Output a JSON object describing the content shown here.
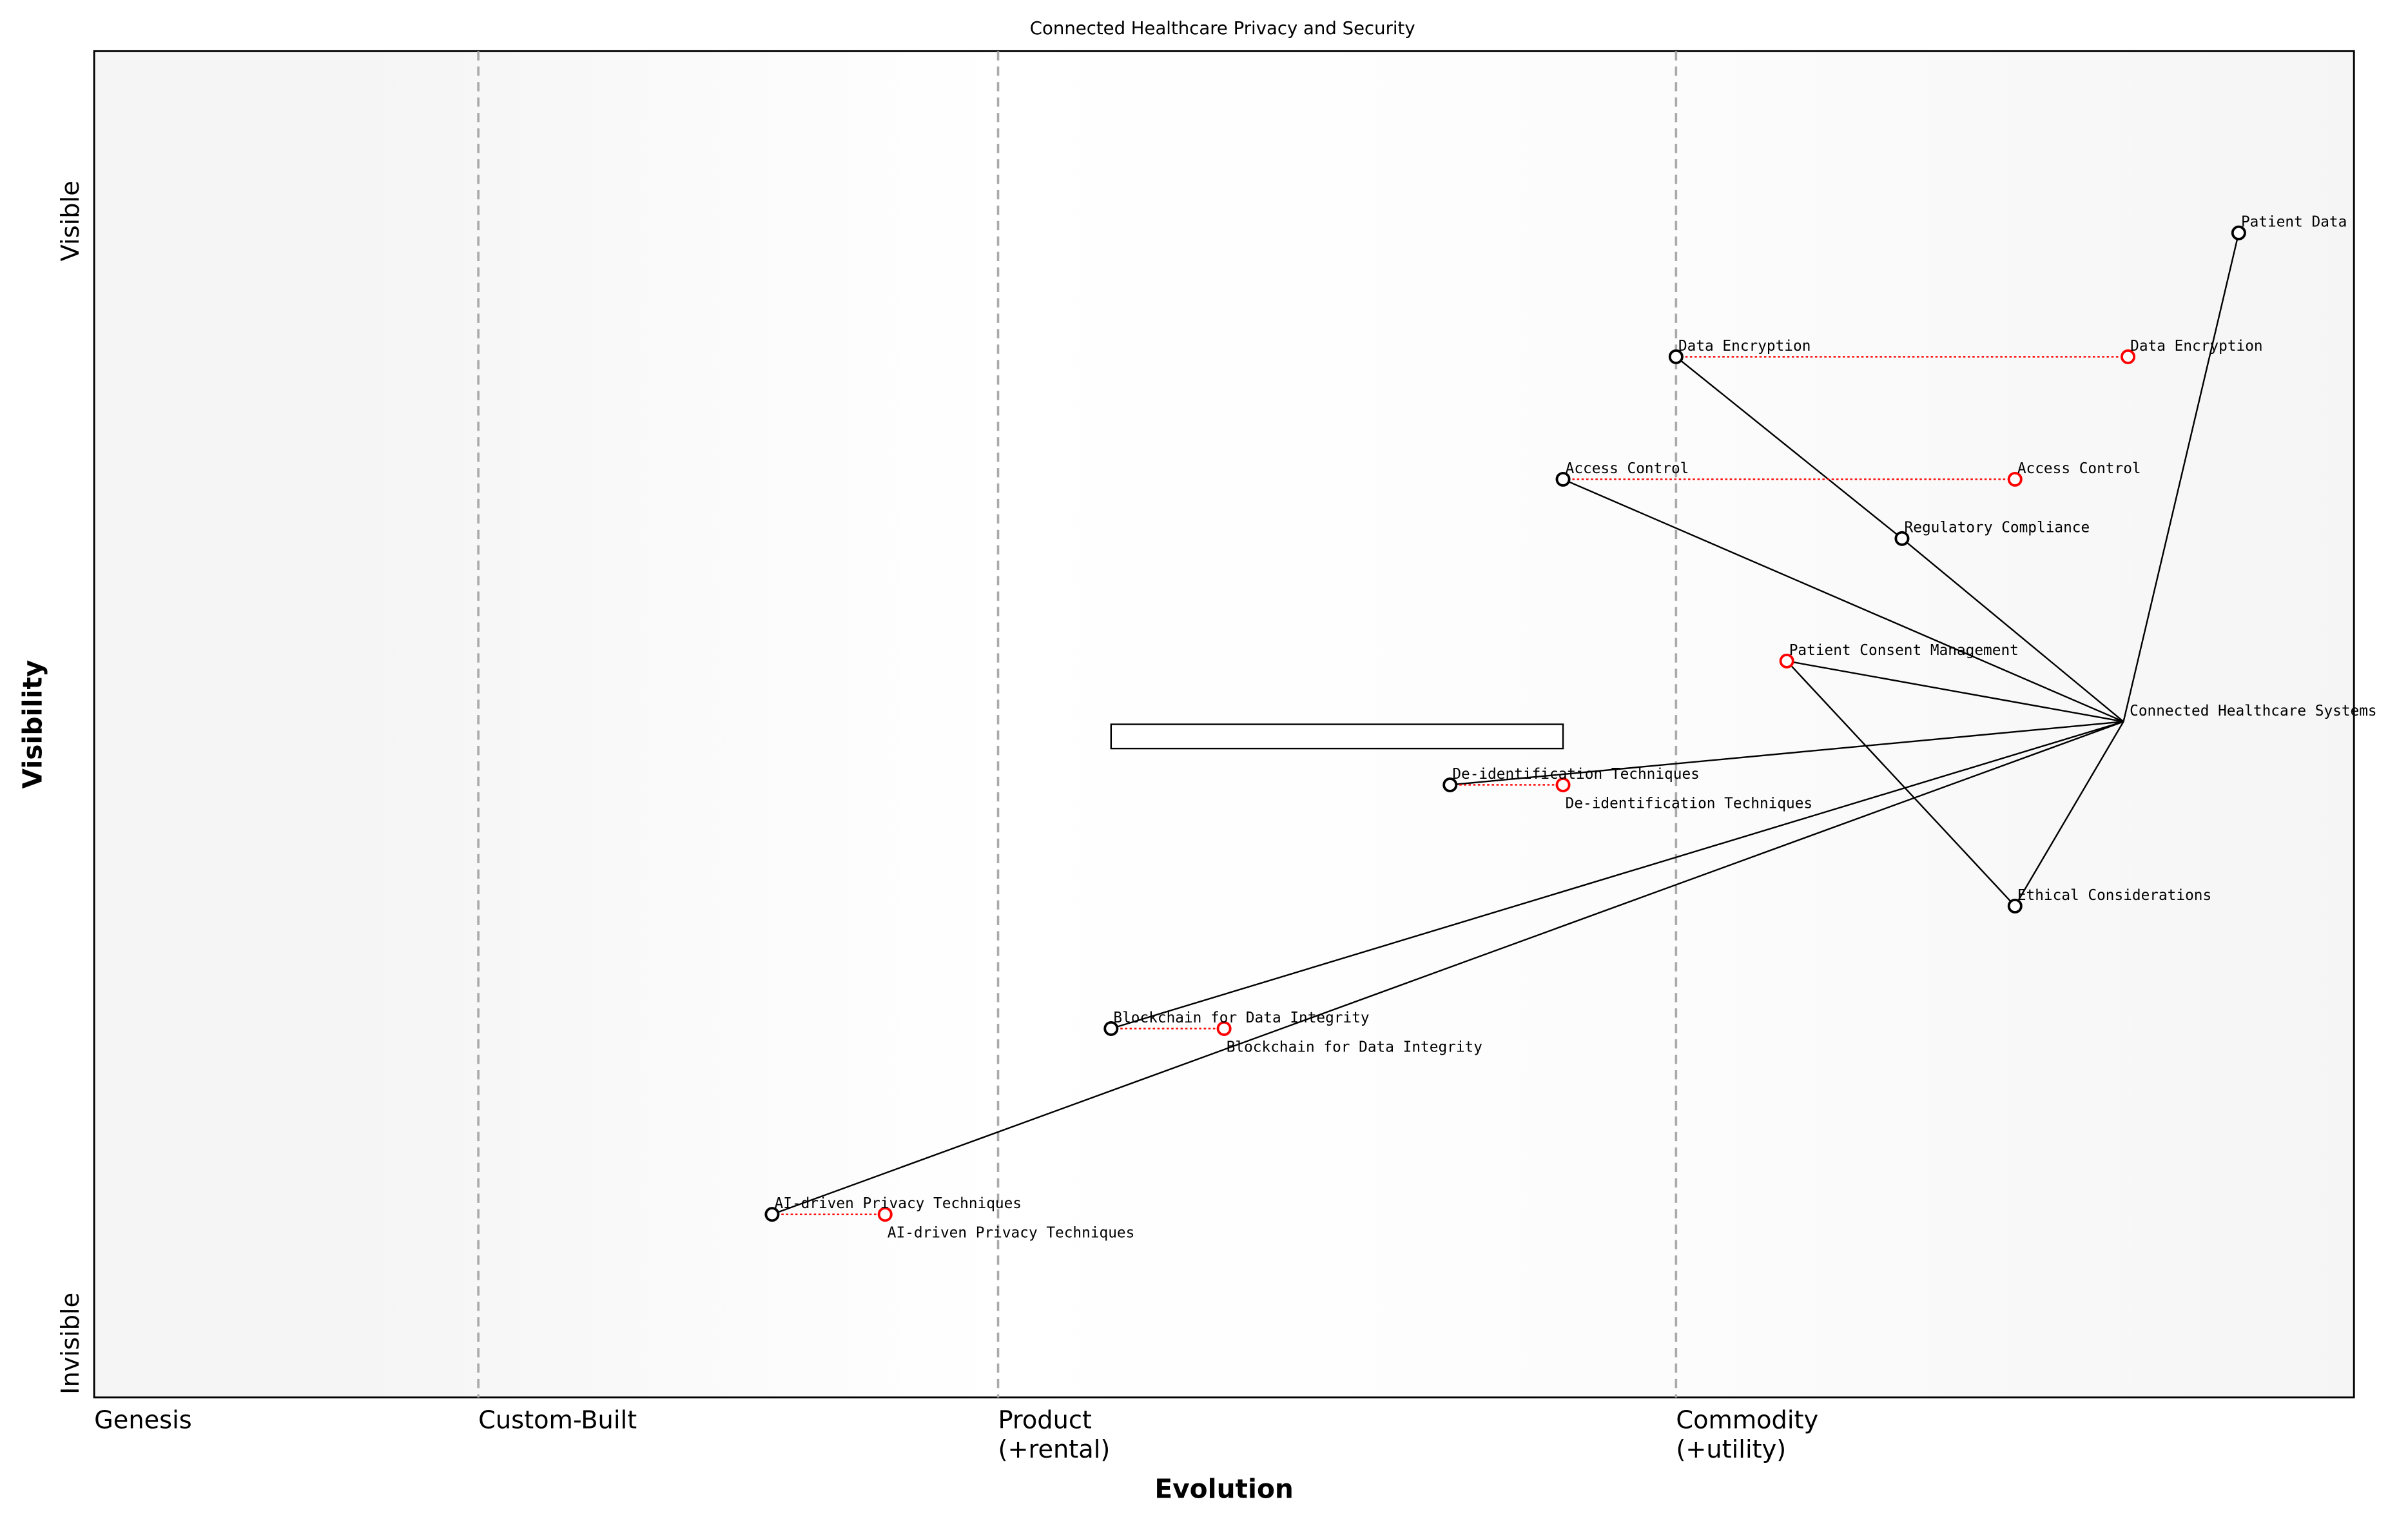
{
  "chart_data": {
    "type": "scatter",
    "subtype": "wardley-map",
    "title": "Connected Healthcare Privacy and Security",
    "xlabel": "Evolution",
    "ylabel": "Visibility",
    "xlim": [
      0,
      1
    ],
    "ylim": [
      0,
      1
    ],
    "y_ticks": {
      "top": "Visible",
      "bottom": "Invisible"
    },
    "stages": [
      {
        "label": "Genesis",
        "x": 0.0
      },
      {
        "label": "Custom-Built",
        "x": 0.17
      },
      {
        "label": "Product\n(+rental)",
        "x": 0.4
      },
      {
        "label": "Commodity\n(+utility)",
        "x": 0.7
      }
    ],
    "colors": {
      "component": "#000000",
      "evolved": "#ff0000",
      "stage_line": "#aaaaaa",
      "background_edge": "#f5f5f5"
    },
    "components": [
      {
        "name": "Patient Data",
        "x": 0.949,
        "y": 0.865
      },
      {
        "name": "Data Encryption",
        "x": 0.7,
        "y": 0.773,
        "evolve_to": 0.9
      },
      {
        "name": "Access Control",
        "x": 0.65,
        "y": 0.682,
        "evolve_to": 0.85
      },
      {
        "name": "Regulatory Compliance",
        "x": 0.8,
        "y": 0.638
      },
      {
        "name": "Patient Consent Management",
        "x": 0.749,
        "y": 0.547,
        "evolve_to": 0.749
      },
      {
        "name": "Connected Healthcare Systems",
        "x": 0.898,
        "y": 0.502,
        "anchor": true
      },
      {
        "name": "De-identification Techniques",
        "x": 0.6,
        "y": 0.455,
        "evolve_to": 0.65
      },
      {
        "name": "Ethical Considerations",
        "x": 0.85,
        "y": 0.365
      },
      {
        "name": "Blockchain for Data Integrity",
        "x": 0.45,
        "y": 0.274,
        "evolve_to": 0.5
      },
      {
        "name": "AI-driven Privacy Techniques",
        "x": 0.3,
        "y": 0.136,
        "evolve_to": 0.35
      }
    ],
    "links": [
      [
        "Patient Data",
        "Connected Healthcare Systems"
      ],
      [
        "Data Encryption",
        "Regulatory Compliance"
      ],
      [
        "Regulatory Compliance",
        "Connected Healthcare Systems"
      ],
      [
        "Access Control",
        "Connected Healthcare Systems"
      ],
      [
        "Patient Consent Management",
        "Connected Healthcare Systems"
      ],
      [
        "Patient Consent Management",
        "Ethical Considerations"
      ],
      [
        "Ethical Considerations",
        "Connected Healthcare Systems"
      ],
      [
        "De-identification Techniques",
        "Connected Healthcare Systems"
      ],
      [
        "Blockchain for Data Integrity",
        "Connected Healthcare Systems"
      ],
      [
        "AI-driven Privacy Techniques",
        "Connected Healthcare Systems"
      ]
    ],
    "annotation_box": {
      "x": [
        0.45,
        0.65
      ],
      "y": [
        0.482,
        0.5
      ],
      "text": ""
    }
  }
}
